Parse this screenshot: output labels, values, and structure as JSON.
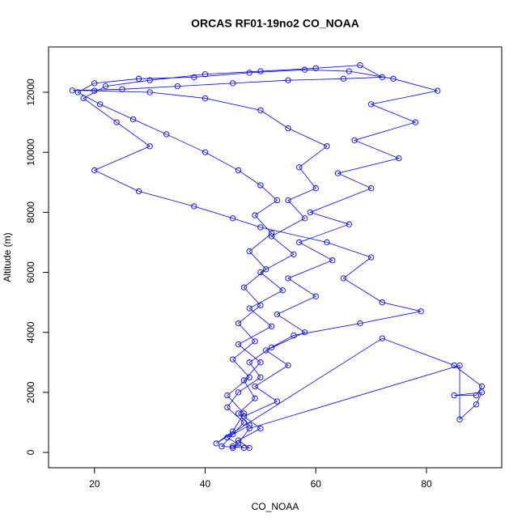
{
  "chart_data": {
    "type": "line",
    "markers": true,
    "title": "ORCAS RF01-19no2 CO_NOAA",
    "x_label": "CO_NOAA",
    "y_label": "Altitude (m)",
    "color": "#0000ff",
    "xlim": [
      11.7,
      93.6
    ],
    "ylim": [
      -510,
      13510
    ],
    "xticks": [
      20,
      40,
      60,
      80
    ],
    "yticks": [
      0,
      2000,
      4000,
      6000,
      8000,
      10000,
      12000
    ],
    "series": [
      {
        "name": "CO_NOAA",
        "color": "#0000ff",
        "x": [
          45,
          47,
          44,
          48,
          46,
          49,
          47,
          50,
          46,
          52,
          48,
          54,
          50,
          56,
          52,
          58,
          55,
          60,
          57,
          62,
          55,
          50,
          40,
          30,
          20,
          16,
          25,
          35,
          45,
          55,
          65,
          72,
          68,
          60,
          50,
          40,
          30,
          22,
          18,
          24,
          30,
          20,
          28,
          38,
          45,
          50,
          62,
          70,
          65,
          72,
          79,
          68,
          56,
          52,
          48,
          50,
          46,
          44,
          47,
          45,
          43,
          48,
          46,
          50,
          47,
          53,
          49,
          55,
          51,
          58,
          53,
          60,
          55,
          63,
          57,
          66,
          59,
          70,
          64,
          75,
          67,
          78,
          70,
          82,
          74,
          66,
          58,
          48,
          38,
          28,
          20,
          17,
          21,
          27,
          33,
          40,
          46,
          50,
          53,
          49,
          52,
          48,
          51,
          47,
          50,
          46,
          49,
          45,
          48,
          44,
          47,
          45,
          42,
          72,
          85,
          90,
          89,
          85,
          90,
          89,
          86,
          86,
          48,
          46,
          45
        ],
        "values": [
          200,
          150,
          500,
          900,
          1300,
          1800,
          2400,
          3000,
          3600,
          4200,
          4800,
          5400,
          6000,
          6600,
          7200,
          7800,
          8400,
          8800,
          9500,
          10200,
          10800,
          11400,
          11800,
          12000,
          12050,
          12060,
          12100,
          12200,
          12300,
          12400,
          12450,
          12500,
          12900,
          12800,
          12700,
          12600,
          12400,
          12200,
          11800,
          11000,
          10200,
          9400,
          8700,
          8200,
          7800,
          7500,
          7000,
          6500,
          5800,
          5000,
          4700,
          4300,
          3900,
          3500,
          3000,
          2500,
          2000,
          1500,
          1000,
          600,
          200,
          150,
          400,
          800,
          1200,
          1700,
          2200,
          2900,
          3400,
          4000,
          4600,
          5200,
          5800,
          6400,
          7000,
          7600,
          8000,
          8800,
          9300,
          9800,
          10400,
          11000,
          11600,
          12050,
          12450,
          12700,
          12750,
          12650,
          12500,
          12450,
          12300,
          12000,
          11600,
          11100,
          10600,
          10000,
          9400,
          8900,
          8400,
          7900,
          7300,
          6700,
          6100,
          5500,
          4900,
          4300,
          3700,
          3100,
          2500,
          1900,
          1300,
          700,
          300,
          3800,
          2900,
          2200,
          1900,
          1900,
          2000,
          1600,
          1100,
          2900,
          800,
          300,
          150
        ]
      }
    ]
  }
}
